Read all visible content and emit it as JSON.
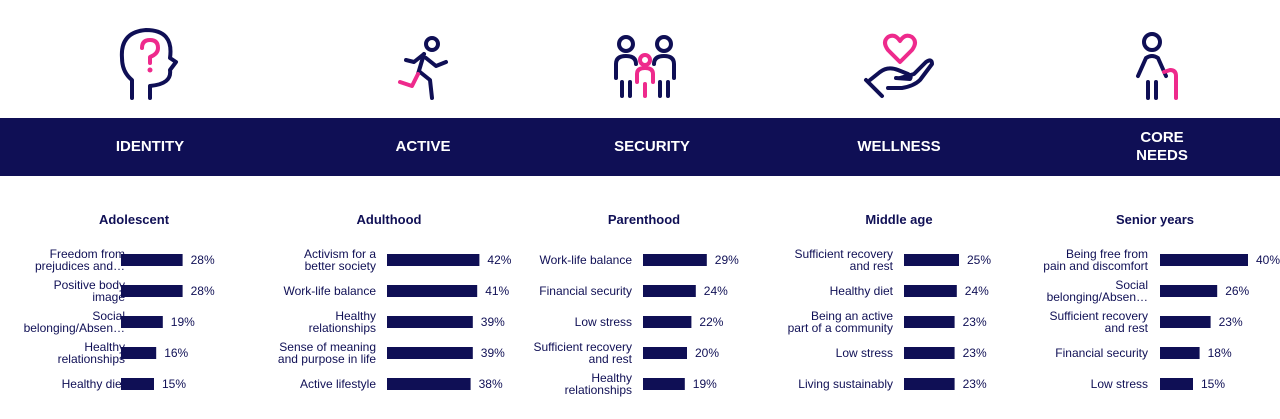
{
  "colors": {
    "navy": "#0f0f55",
    "pink": "#ee2a8c",
    "bar": "#0f0f55"
  },
  "categories": [
    {
      "label": "IDENTITY",
      "icon": "head-question-icon"
    },
    {
      "label": "ACTIVE",
      "icon": "running-person-icon"
    },
    {
      "label": "SECURITY",
      "icon": "family-icon"
    },
    {
      "label": "WELLNESS",
      "icon": "hand-heart-icon"
    },
    {
      "label": "CORE\nNEEDS",
      "icon": "elderly-person-cane-icon"
    }
  ],
  "chart_data": [
    {
      "type": "bar",
      "title": "Adolescent",
      "categories": [
        "Freedom from\nprejudices and…",
        "Positive body\nimage",
        "Social\nbelonging/Absen…",
        "Healthy\nrelationships",
        "Healthy diet"
      ],
      "values": [
        28,
        28,
        19,
        16,
        15
      ],
      "value_labels": [
        "28%",
        "28%",
        "19%",
        "16%",
        "15%"
      ]
    },
    {
      "type": "bar",
      "title": "Adulthood",
      "categories": [
        "Activism for a\nbetter society",
        "Work-life balance",
        "Healthy\nrelationships",
        "Sense of meaning\nand purpose in life",
        "Active lifestyle"
      ],
      "values": [
        42,
        41,
        39,
        39,
        38
      ],
      "value_labels": [
        "42%",
        "41%",
        "39%",
        "39%",
        "38%"
      ]
    },
    {
      "type": "bar",
      "title": "Parenthood",
      "categories": [
        "Work-life balance",
        "Financial security",
        "Low stress",
        "Sufficient recovery\nand rest",
        "Healthy\nrelationships"
      ],
      "values": [
        29,
        24,
        22,
        20,
        19
      ],
      "value_labels": [
        "29%",
        "24%",
        "22%",
        "20%",
        "19%"
      ]
    },
    {
      "type": "bar",
      "title": "Middle age",
      "categories": [
        "Sufficient recovery\nand rest",
        "Healthy diet",
        "Being an active\npart of a community",
        "Low stress",
        "Living sustainably"
      ],
      "values": [
        25,
        24,
        23,
        23,
        23
      ],
      "value_labels": [
        "25%",
        "24%",
        "23%",
        "23%",
        "23%"
      ]
    },
    {
      "type": "bar",
      "title": "Senior years",
      "categories": [
        "Being free from\npain and discomfort",
        "Social\nbelonging/Absen…",
        "Sufficient recovery\nand rest",
        "Financial security",
        "Low stress"
      ],
      "values": [
        40,
        26,
        23,
        18,
        15
      ],
      "value_labels": [
        "40%",
        "26%",
        "23%",
        "18%",
        "15%"
      ]
    }
  ]
}
